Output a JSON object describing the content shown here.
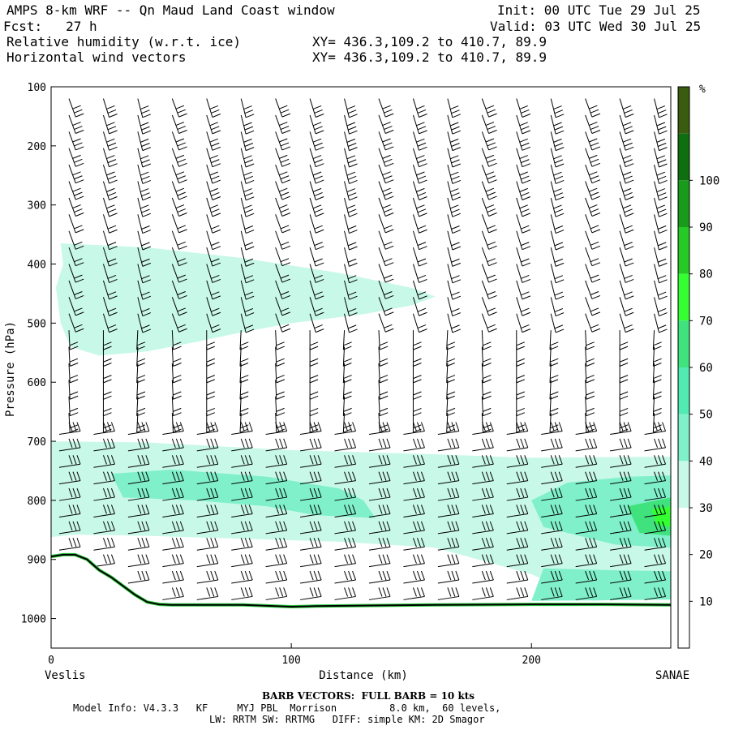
{
  "header": {
    "title": "AMPS 8-km WRF -- Qn Maud Land Coast window",
    "init": "Init: 00 UTC Tue 29 Jul 25",
    "fcst": "Fcst:   27 h",
    "valid": "Valid: 03 UTC Wed 30 Jul 25",
    "field1": "Relative humidity (w.r.t. ice)",
    "field1_xy": "XY= 436.3,109.2 to 410.7, 89.9",
    "field2": "Horizontal wind vectors",
    "field2_xy": "XY= 436.3,109.2 to 410.7, 89.9"
  },
  "footer": {
    "barb_note": "BARB VECTORS:  FULL BARB = 10 kts",
    "model_info_1": "Model Info: V4.3.3   KF     MYJ PBL  Morrison         8.0 km,  60 levels,",
    "model_info_2": "LW: RRTM SW: RRTMG   DIFF: simple KM: 2D Smagor"
  },
  "chart_data": {
    "type": "heatmap",
    "title": "Relative humidity (w.r.t. ice)",
    "xlabel": "Distance (km)",
    "ylabel": "Pressure (hPa)",
    "x_start_label": "Veslis",
    "x_end_label": "SANAE",
    "xlim": [
      0,
      258
    ],
    "ylim": [
      100,
      1050
    ],
    "x_ticks": [
      0,
      100,
      200
    ],
    "y_ticks": [
      100,
      200,
      300,
      400,
      500,
      600,
      700,
      800,
      900,
      1000
    ],
    "colorbar": {
      "unit": "%",
      "levels": [
        10,
        20,
        30,
        40,
        50,
        60,
        70,
        80,
        90,
        100
      ],
      "colors": [
        "#ffffff",
        "#ffffff",
        "#ffffff",
        "#c8f8e8",
        "#7ff0c9",
        "#50eab2",
        "#40e27d",
        "#33ff33",
        "#26c926",
        "#1a9a1a",
        "#0f6e0f",
        "#3a5c0e"
      ]
    },
    "terrain": [
      [
        0,
        895
      ],
      [
        5,
        892
      ],
      [
        10,
        892
      ],
      [
        15,
        900
      ],
      [
        20,
        918
      ],
      [
        25,
        930
      ],
      [
        30,
        945
      ],
      [
        35,
        960
      ],
      [
        40,
        972
      ],
      [
        45,
        976
      ],
      [
        50,
        977
      ],
      [
        60,
        977
      ],
      [
        80,
        977
      ],
      [
        100,
        980
      ],
      [
        110,
        979
      ],
      [
        130,
        978
      ],
      [
        160,
        977
      ],
      [
        200,
        976
      ],
      [
        230,
        976
      ],
      [
        258,
        977
      ]
    ],
    "rh_regions": [
      {
        "level": "30-40",
        "outline": [
          [
            4,
            365
          ],
          [
            40,
            372
          ],
          [
            80,
            390
          ],
          [
            120,
            415
          ],
          [
            150,
            440
          ],
          [
            160,
            455
          ],
          [
            150,
            470
          ],
          [
            130,
            485
          ],
          [
            100,
            500
          ],
          [
            80,
            515
          ],
          [
            60,
            532
          ],
          [
            40,
            548
          ],
          [
            20,
            555
          ],
          [
            8,
            540
          ],
          [
            4,
            500
          ],
          [
            2,
            440
          ],
          [
            5,
            400
          ]
        ]
      },
      {
        "level": "30-40",
        "outline": [
          [
            0,
            700
          ],
          [
            40,
            702
          ],
          [
            100,
            715
          ],
          [
            160,
            722
          ],
          [
            200,
            728
          ],
          [
            258,
            726
          ],
          [
            258,
            965
          ],
          [
            225,
            970
          ],
          [
            200,
            925
          ],
          [
            160,
            880
          ],
          [
            120,
            870
          ],
          [
            80,
            865
          ],
          [
            40,
            860
          ],
          [
            10,
            858
          ],
          [
            0,
            862
          ]
        ]
      },
      {
        "level": "40-50",
        "outline": [
          [
            25,
            755
          ],
          [
            50,
            748
          ],
          [
            90,
            760
          ],
          [
            120,
            780
          ],
          [
            130,
            800
          ],
          [
            135,
            830
          ],
          [
            110,
            825
          ],
          [
            90,
            810
          ],
          [
            60,
            800
          ],
          [
            30,
            795
          ]
        ]
      },
      {
        "level": "40-50",
        "outline": [
          [
            200,
            800
          ],
          [
            215,
            770
          ],
          [
            240,
            760
          ],
          [
            258,
            758
          ],
          [
            258,
            880
          ],
          [
            235,
            875
          ],
          [
            220,
            860
          ],
          [
            205,
            845
          ]
        ]
      },
      {
        "level": "40-50",
        "outline": [
          [
            205,
            915
          ],
          [
            230,
            918
          ],
          [
            258,
            920
          ],
          [
            258,
            968
          ],
          [
            200,
            970
          ]
        ]
      },
      {
        "level": "50-60",
        "outline": [
          [
            240,
            810
          ],
          [
            258,
            795
          ],
          [
            258,
            860
          ],
          [
            245,
            855
          ]
        ]
      },
      {
        "level": "60-70",
        "outline": [
          [
            250,
            815
          ],
          [
            258,
            810
          ],
          [
            258,
            845
          ],
          [
            252,
            840
          ]
        ]
      }
    ]
  }
}
